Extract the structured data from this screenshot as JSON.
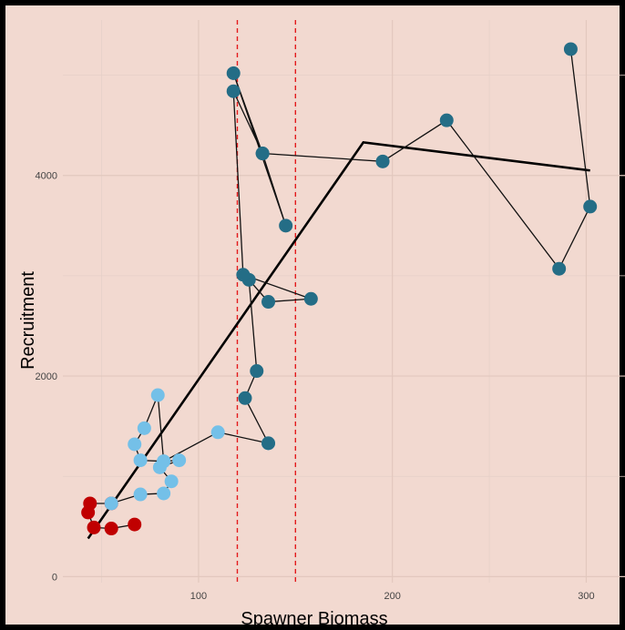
{
  "chart_data": {
    "type": "scatter",
    "xlabel": "Spawner Biomass",
    "ylabel": "Recruitment",
    "xlim": [
      30,
      320
    ],
    "ylim": [
      -60,
      5550
    ],
    "x_ticks": [
      100,
      200,
      300
    ],
    "y_ticks": [
      0,
      2000,
      4000
    ],
    "grid": true,
    "vlines": [
      120,
      150
    ],
    "vline_color": "#e31a1c",
    "path_color": "#111111",
    "series": [
      {
        "color": "#c00000",
        "points": [
          [
            67,
            520
          ],
          [
            55,
            480
          ],
          [
            46,
            490
          ],
          [
            43,
            640
          ],
          [
            44,
            730
          ],
          [
            55,
            730
          ]
        ]
      },
      {
        "color": "#74c0e8",
        "points": [
          [
            55,
            730
          ],
          [
            70,
            820
          ],
          [
            82,
            830
          ],
          [
            86,
            950
          ],
          [
            80,
            1090
          ],
          [
            90,
            1160
          ],
          [
            82,
            1150
          ],
          [
            70,
            1160
          ],
          [
            67,
            1320
          ],
          [
            72,
            1480
          ],
          [
            79,
            1810
          ],
          [
            82,
            1150
          ],
          [
            110,
            1440
          ],
          [
            136,
            1330
          ]
        ]
      },
      {
        "color": "#246d86",
        "points": [
          [
            136,
            1330
          ],
          [
            124,
            1780
          ],
          [
            130,
            2050
          ],
          [
            126,
            2960
          ],
          [
            136,
            2740
          ],
          [
            158,
            2770
          ],
          [
            123,
            3010
          ],
          [
            118,
            4840
          ],
          [
            133,
            4220
          ],
          [
            145,
            3500
          ],
          [
            118,
            5020
          ],
          [
            133,
            4220
          ],
          [
            195,
            4140
          ],
          [
            228,
            4550
          ],
          [
            286,
            3070
          ],
          [
            302,
            3690
          ],
          [
            292,
            5260
          ]
        ]
      }
    ],
    "fit_line": {
      "color": "#000000",
      "points": [
        [
          43,
          380
        ],
        [
          185,
          4330
        ],
        [
          302,
          4050
        ]
      ]
    }
  }
}
